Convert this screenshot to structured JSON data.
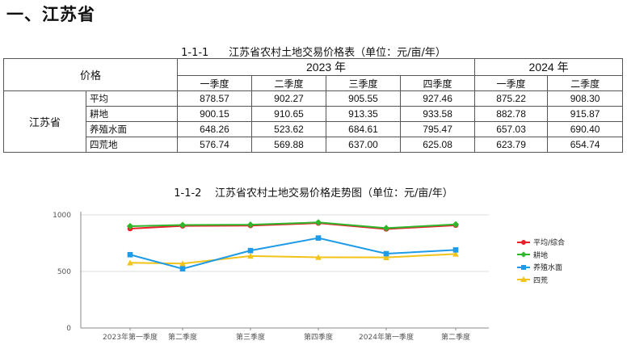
{
  "heading": "一、江苏省",
  "table": {
    "caption": "1-1-1      江苏省农村土地交易价格表（单位：元/亩/年）",
    "header_label": "价格",
    "years": [
      {
        "label": "2023 年",
        "quarters": [
          "一季度",
          "二季度",
          "三季度",
          "四季度"
        ]
      },
      {
        "label": "2024 年",
        "quarters": [
          "一季度",
          "二季度"
        ]
      }
    ],
    "province": "江苏省",
    "rows": [
      {
        "label": "平均",
        "values": [
          "878.57",
          "902.27",
          "905.55",
          "927.46",
          "875.22",
          "908.30"
        ]
      },
      {
        "label": "耕地",
        "values": [
          "900.15",
          "910.65",
          "913.35",
          "933.58",
          "882.78",
          "915.87"
        ]
      },
      {
        "label": "养殖水面",
        "values": [
          "648.26",
          "523.62",
          "684.61",
          "795.47",
          "657.03",
          "690.40"
        ]
      },
      {
        "label": "四荒地",
        "values": [
          "576.74",
          "569.88",
          "637.00",
          "625.08",
          "623.79",
          "654.74"
        ]
      }
    ]
  },
  "chart_data": {
    "type": "line",
    "title": "1-1-2    江苏省农村土地交易价格走势图（单位：元/亩/年）",
    "categories": [
      "2023年第一季度",
      "第二季度",
      "第三季度",
      "第四季度",
      "2024年第一季度",
      "第二季度"
    ],
    "y_ticks": [
      "0",
      "500",
      "1000"
    ],
    "ylim": [
      0,
      1000
    ],
    "grid": "horizontal",
    "legend_position": "right",
    "series": [
      {
        "name": "平均/综合",
        "color": "#e8202a",
        "marker": "circle",
        "values": [
          878.57,
          902.27,
          905.55,
          927.46,
          875.22,
          908.3
        ]
      },
      {
        "name": "耕地",
        "color": "#2fb62c",
        "marker": "diamond",
        "values": [
          900.15,
          910.65,
          913.35,
          933.58,
          882.78,
          915.87
        ]
      },
      {
        "name": "养殖水面",
        "color": "#1e9be8",
        "marker": "square",
        "values": [
          648.26,
          523.62,
          684.61,
          795.47,
          657.03,
          690.4
        ]
      },
      {
        "name": "四荒",
        "color": "#f2c318",
        "marker": "triangle",
        "values": [
          576.74,
          569.88,
          637.0,
          625.08,
          623.79,
          654.74
        ]
      }
    ]
  }
}
